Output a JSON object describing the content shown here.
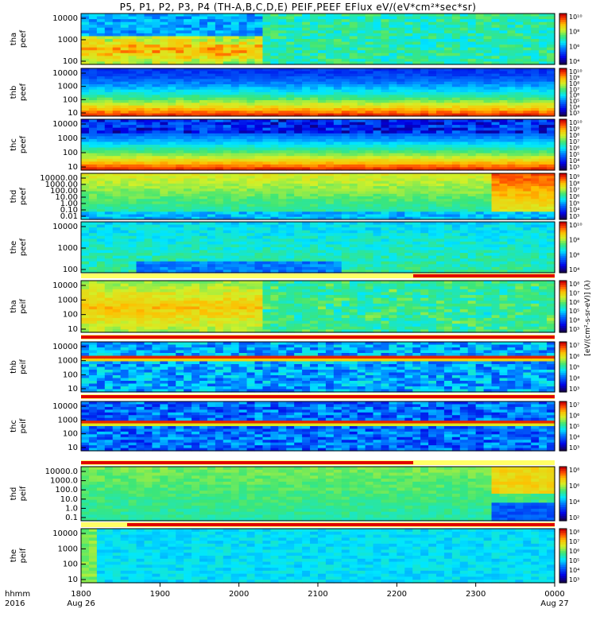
{
  "title": "P5, P1, P2, P3, P4 (TH-A,B,C,D,E) PEIF,PEEF EFlux eV/(eV*cm²*sec*sr)",
  "time_axis": {
    "row_label_1": "hhmm",
    "row_label_2": "2016",
    "ticks": [
      "1800",
      "1900",
      "2000",
      "2100",
      "2200",
      "2300",
      "0000"
    ],
    "dates": [
      "Aug 26",
      "Aug 27"
    ]
  },
  "colorbar_unit_text": "[eV/(cm²-s-sr-eV)]  (λ)",
  "chart_data": [
    {
      "type": "heatmap",
      "ylabel": [
        "tha",
        "peef"
      ],
      "yticks": [
        "10000",
        "1000",
        "100"
      ],
      "cb_ticks": [
        "10¹⁰",
        "10⁸",
        "10⁶",
        "10⁴"
      ],
      "flag": null
    },
    {
      "type": "heatmap",
      "ylabel": [
        "thb",
        "peef"
      ],
      "yticks": [
        "10000",
        "1000",
        "100",
        "10"
      ],
      "cb_ticks": [
        "10¹⁰",
        "10⁹",
        "10⁸",
        "10⁷",
        "10⁶",
        "10⁵",
        "10⁴",
        "10³"
      ],
      "flag": null
    },
    {
      "type": "heatmap",
      "ylabel": [
        "thc",
        "peef"
      ],
      "yticks": [
        "10000",
        "1000",
        "100",
        "10"
      ],
      "cb_ticks": [
        "10¹⁰",
        "10⁹",
        "10⁸",
        "10⁷",
        "10⁶",
        "10⁵",
        "10⁴",
        "10³"
      ],
      "flag": null
    },
    {
      "type": "heatmap",
      "ylabel": [
        "thd",
        "peef"
      ],
      "yticks": [
        "10000.00",
        "1000.00",
        "100.00",
        "10.00",
        "1.00",
        "0.10",
        "0.01"
      ],
      "cb_ticks": [
        "10⁹",
        "10⁸",
        "10⁷",
        "10⁶",
        "10⁵",
        "10⁴",
        "10³"
      ],
      "flag": null
    },
    {
      "type": "heatmap",
      "ylabel": [
        "the",
        "peef"
      ],
      "yticks": [
        "10000",
        "1000",
        "100"
      ],
      "cb_ticks": [
        "10¹⁰",
        "10⁸",
        "10⁶",
        "10⁴"
      ],
      "flag": "partial-right"
    },
    {
      "type": "heatmap",
      "ylabel": [
        "tha",
        "peif"
      ],
      "yticks": [
        "10000",
        "1000",
        "100",
        "10"
      ],
      "cb_ticks": [
        "10⁸",
        "10⁷",
        "10⁶",
        "10⁵",
        "10⁴",
        "10³"
      ],
      "flag": "full"
    },
    {
      "type": "heatmap",
      "ylabel": [
        "thb",
        "peif"
      ],
      "yticks": [
        "10000",
        "1000",
        "100",
        "10"
      ],
      "cb_ticks": [
        "10⁷",
        "10⁶",
        "10⁵",
        "10⁴",
        "10³"
      ],
      "flag": "full"
    },
    {
      "type": "heatmap",
      "ylabel": [
        "thc",
        "peif"
      ],
      "yticks": [
        "10000",
        "1000",
        "100",
        "10"
      ],
      "cb_ticks": [
        "10⁷",
        "10⁶",
        "10⁵",
        "10⁴",
        "10³"
      ],
      "flag": "partial-left"
    },
    {
      "type": "heatmap",
      "ylabel": [
        "thd",
        "peif"
      ],
      "yticks": [
        "10000.0",
        "1000.0",
        "100.0",
        "10.0",
        "1.0",
        "0.1"
      ],
      "cb_ticks": [
        "10⁸",
        "10⁶",
        "10⁴",
        "10²"
      ],
      "flag": "partial-mid"
    },
    {
      "type": "heatmap",
      "ylabel": [
        "the",
        "peif"
      ],
      "yticks": [
        "10000",
        "1000",
        "100",
        "10"
      ],
      "cb_ticks": [
        "10⁸",
        "10⁷",
        "10⁶",
        "10⁵",
        "10⁴",
        "10³"
      ],
      "flag": null
    }
  ]
}
